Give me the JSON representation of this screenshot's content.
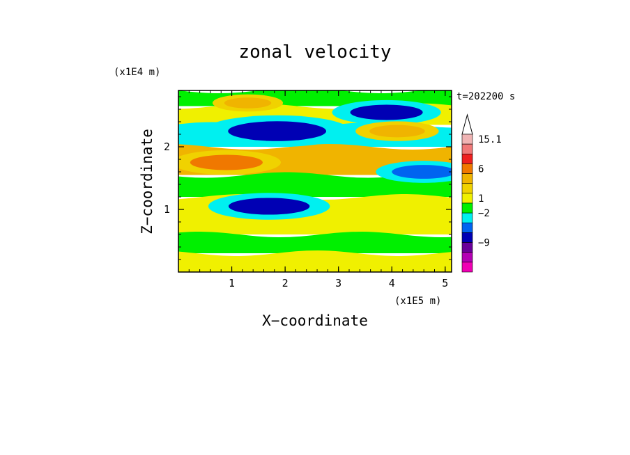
{
  "chart_data": {
    "type": "heatmap",
    "title": "zonal velocity",
    "xlabel": "X−coordinate",
    "ylabel": "Z−coordinate",
    "x_unit": "(x1E5 m)",
    "y_unit": "(x1E4 m)",
    "x_ticks": [
      "1",
      "2",
      "3",
      "4",
      "5"
    ],
    "y_ticks": [
      "1",
      "2"
    ],
    "x_tick_values": [
      1,
      2,
      3,
      4,
      5
    ],
    "y_tick_values": [
      1,
      2
    ],
    "xlim": [
      0,
      5.12
    ],
    "ylim": [
      0,
      2.9
    ],
    "time_label": "t=202200 s",
    "colorbar": {
      "labels": [
        "15.1",
        "6",
        "1",
        "−2",
        "−9"
      ],
      "label_values": [
        15.1,
        6,
        1,
        -2,
        -9
      ],
      "levels_top_to_bottom": [
        {
          "color": "#f0b4b4"
        },
        {
          "color": "#f07878"
        },
        {
          "color": "#ee2020"
        },
        {
          "color": "#f07800"
        },
        {
          "color": "#f0b400"
        },
        {
          "color": "#f0d200"
        },
        {
          "color": "#f0f000"
        },
        {
          "color": "#00f000"
        },
        {
          "color": "#00f0f0"
        },
        {
          "color": "#0064f0"
        },
        {
          "color": "#0000b4"
        },
        {
          "color": "#6a009a"
        },
        {
          "color": "#b400b4"
        },
        {
          "color": "#f000b4"
        }
      ]
    },
    "field_bands": [
      {
        "z": [
          2.65,
          2.9
        ],
        "value": -2,
        "color": "#00f000"
      },
      {
        "z": [
          2.35,
          2.65
        ],
        "value": 1,
        "color": "#f0f000"
      },
      {
        "z": [
          2.0,
          2.35
        ],
        "value": -3,
        "color": "#00f0f0"
      },
      {
        "z": [
          1.55,
          2.0
        ],
        "value": 3,
        "color": "#f0b400"
      },
      {
        "z": [
          1.2,
          1.55
        ],
        "value": -1,
        "color": "#00f000"
      },
      {
        "z": [
          0.6,
          1.2
        ],
        "value": 1,
        "color": "#f0f000"
      },
      {
        "z": [
          0.3,
          0.6
        ],
        "value": -1,
        "color": "#00f000"
      },
      {
        "z": [
          0.0,
          0.3
        ],
        "value": 1,
        "color": "#f0f000"
      }
    ],
    "features": [
      {
        "name": "negative-core-upper",
        "x": 1.85,
        "z": 2.25,
        "value": -9,
        "color": "#0000b4"
      },
      {
        "name": "negative-core-mid",
        "x": 1.7,
        "z": 1.05,
        "value": -7,
        "color": "#0000b4"
      },
      {
        "name": "negative-core-right",
        "x": 4.6,
        "z": 1.6,
        "value": -5,
        "color": "#0064f0"
      },
      {
        "name": "negative-core-topright",
        "x": 3.9,
        "z": 2.55,
        "value": -6,
        "color": "#0000b4"
      },
      {
        "name": "positive-core-left",
        "x": 0.9,
        "z": 1.75,
        "value": 6,
        "color": "#f07800"
      },
      {
        "name": "positive-core-right",
        "x": 4.1,
        "z": 2.25,
        "value": 4,
        "color": "#f0b400"
      },
      {
        "name": "positive-core-top",
        "x": 1.3,
        "z": 2.7,
        "value": 3,
        "color": "#f0b400"
      }
    ]
  }
}
